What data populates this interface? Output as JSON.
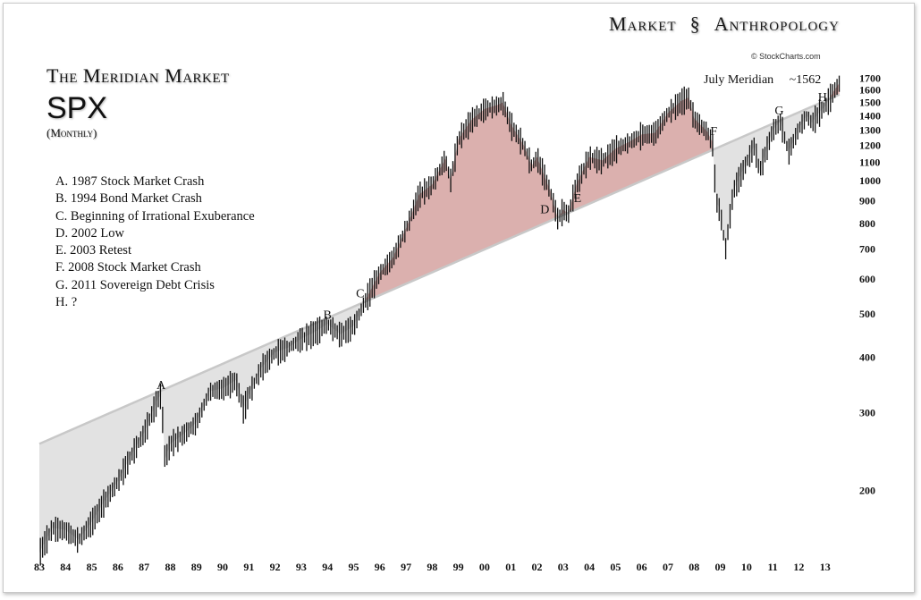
{
  "brand": {
    "first": "Market",
    "second": "Anthropology"
  },
  "credit": "© StockCharts.com",
  "title": {
    "line1": "The Meridian Market",
    "symbol": "SPX",
    "period": "(Monthly)"
  },
  "legend": [
    "A.  1987 Stock Market Crash",
    "B.  1994 Bond Market Crash",
    "C.  Beginning of Irrational Exuberance",
    "D.  2002 Low",
    "E.  2003 Retest",
    "F.  2008 Stock Market Crash",
    "G.  2011 Sovereign Debt Crisis",
    "H.  ?"
  ],
  "meridian_note": {
    "label": "July Meridian",
    "value": "~1562"
  },
  "colors": {
    "above_fill": "#dbb0ae",
    "below_fill": "#e2e2e2",
    "meridian_line": "#c8c8c8",
    "bars": "#111111"
  },
  "chart_data": {
    "type": "line",
    "scale": "log",
    "x_ticks": [
      "83",
      "84",
      "85",
      "86",
      "87",
      "88",
      "89",
      "90",
      "91",
      "92",
      "93",
      "94",
      "95",
      "96",
      "97",
      "98",
      "99",
      "00",
      "01",
      "02",
      "03",
      "04",
      "05",
      "06",
      "07",
      "08",
      "09",
      "10",
      "11",
      "12",
      "13"
    ],
    "y_ticks": [
      200,
      300,
      400,
      500,
      600,
      700,
      800,
      900,
      1000,
      1100,
      1200,
      1300,
      1400,
      1500,
      1600,
      1700
    ],
    "ylim": [
      145,
      1760
    ],
    "xlim": [
      1983.0,
      2014.0
    ],
    "meridian": {
      "from": {
        "x": 1983.0,
        "y": 255
      },
      "to": {
        "x": 2013.55,
        "y": 1562
      }
    },
    "series": [
      {
        "values": [
          [
            1983.0,
            145
          ],
          [
            1983.5,
            165
          ],
          [
            1984.0,
            163
          ],
          [
            1984.5,
            155
          ],
          [
            1985.0,
            170
          ],
          [
            1985.5,
            190
          ],
          [
            1986.0,
            210
          ],
          [
            1986.5,
            240
          ],
          [
            1987.0,
            270
          ],
          [
            1987.5,
            320
          ],
          [
            1987.65,
            330
          ],
          [
            1987.8,
            235
          ],
          [
            1988.0,
            255
          ],
          [
            1988.5,
            268
          ],
          [
            1989.0,
            285
          ],
          [
            1989.5,
            335
          ],
          [
            1990.0,
            340
          ],
          [
            1990.5,
            355
          ],
          [
            1990.8,
            305
          ],
          [
            1991.0,
            330
          ],
          [
            1991.5,
            380
          ],
          [
            1992.0,
            410
          ],
          [
            1992.5,
            420
          ],
          [
            1993.0,
            440
          ],
          [
            1993.5,
            455
          ],
          [
            1994.0,
            475
          ],
          [
            1994.5,
            450
          ],
          [
            1995.0,
            470
          ],
          [
            1995.5,
            545
          ],
          [
            1996.0,
            620
          ],
          [
            1996.5,
            670
          ],
          [
            1997.0,
            780
          ],
          [
            1997.5,
            930
          ],
          [
            1998.0,
            980
          ],
          [
            1998.5,
            1120
          ],
          [
            1998.7,
            1000
          ],
          [
            1999.0,
            1240
          ],
          [
            1999.5,
            1370
          ],
          [
            2000.0,
            1450
          ],
          [
            2000.5,
            1480
          ],
          [
            2000.7,
            1500
          ],
          [
            2001.0,
            1340
          ],
          [
            2001.5,
            1200
          ],
          [
            2001.8,
            1080
          ],
          [
            2002.0,
            1130
          ],
          [
            2002.5,
            950
          ],
          [
            2002.8,
            820
          ],
          [
            2003.0,
            860
          ],
          [
            2003.2,
            840
          ],
          [
            2003.5,
            980
          ],
          [
            2004.0,
            1130
          ],
          [
            2004.5,
            1110
          ],
          [
            2005.0,
            1180
          ],
          [
            2005.5,
            1220
          ],
          [
            2006.0,
            1270
          ],
          [
            2006.5,
            1280
          ],
          [
            2007.0,
            1420
          ],
          [
            2007.5,
            1510
          ],
          [
            2007.8,
            1540
          ],
          [
            2008.0,
            1380
          ],
          [
            2008.5,
            1290
          ],
          [
            2008.7,
            1220
          ],
          [
            2008.85,
            900
          ],
          [
            2009.0,
            850
          ],
          [
            2009.2,
            700
          ],
          [
            2009.5,
            950
          ],
          [
            2010.0,
            1100
          ],
          [
            2010.3,
            1200
          ],
          [
            2010.5,
            1050
          ],
          [
            2011.0,
            1300
          ],
          [
            2011.3,
            1360
          ],
          [
            2011.6,
            1160
          ],
          [
            2012.0,
            1310
          ],
          [
            2012.3,
            1400
          ],
          [
            2012.5,
            1350
          ],
          [
            2012.8,
            1430
          ],
          [
            2013.0,
            1470
          ],
          [
            2013.3,
            1580
          ],
          [
            2013.55,
            1660
          ]
        ]
      }
    ],
    "annotations": [
      {
        "label": "A",
        "x": 1987.65,
        "y": 330
      },
      {
        "label": "B",
        "x": 1994.0,
        "y": 475
      },
      {
        "label": "C",
        "x": 1995.25,
        "y": 530
      },
      {
        "label": "D",
        "x": 2002.3,
        "y": 820
      },
      {
        "label": "E",
        "x": 2003.55,
        "y": 870
      },
      {
        "label": "F",
        "x": 2008.75,
        "y": 1230
      },
      {
        "label": "G",
        "x": 2011.25,
        "y": 1370
      },
      {
        "label": "H",
        "x": 2012.9,
        "y": 1470
      }
    ]
  }
}
